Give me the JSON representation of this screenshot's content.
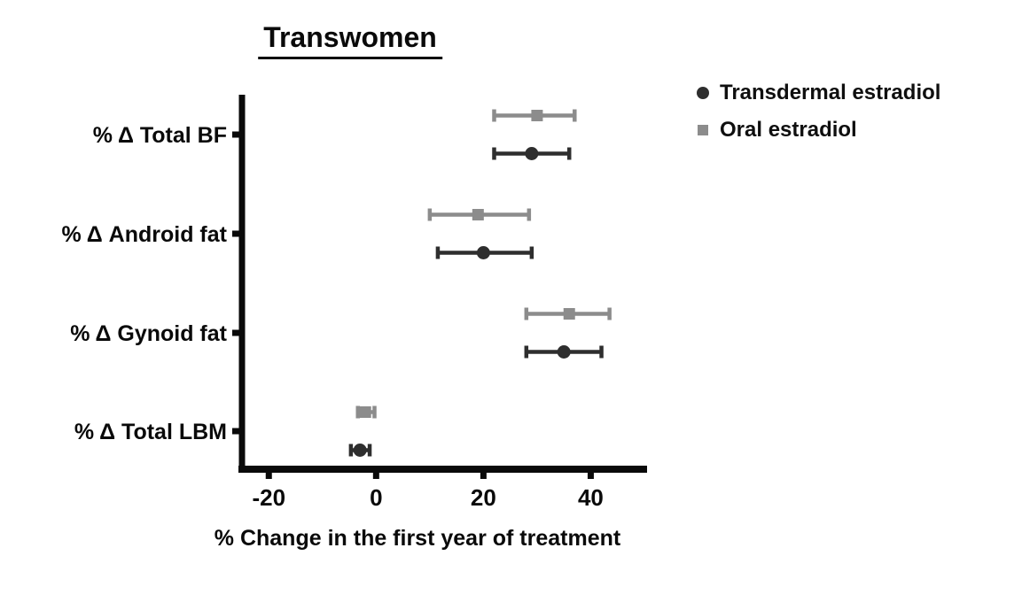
{
  "chart_data": {
    "type": "scatter",
    "subtype": "horizontal-forest-plot-with-error-bars",
    "title": "Transwomen",
    "xlabel": "% Change in the first year of treatment",
    "ylabel": "",
    "categories": [
      "% Δ Total BF",
      "% Δ Android fat",
      "% Δ Gynoid fat",
      "% Δ Total LBM"
    ],
    "xticks": [
      -20,
      0,
      20,
      40
    ],
    "xlim": [
      -25,
      50.5
    ],
    "grid": false,
    "legend_position": "top-right",
    "axis_color": "#0a0a0a",
    "series": [
      {
        "name": "Transdermal estradiol",
        "marker": "circle",
        "color": "#2e2e2e",
        "values": [
          29,
          20,
          35,
          -3
        ],
        "ci_low": [
          22,
          11.5,
          28,
          -4.7
        ],
        "ci_high": [
          36,
          29,
          42,
          -1.2
        ]
      },
      {
        "name": "Oral estradiol",
        "marker": "square",
        "color": "#8c8c8c",
        "values": [
          30,
          19,
          36,
          -2
        ],
        "ci_low": [
          22,
          10,
          28,
          -3.4
        ],
        "ci_high": [
          37,
          28.5,
          43.5,
          -0.3
        ]
      }
    ]
  }
}
